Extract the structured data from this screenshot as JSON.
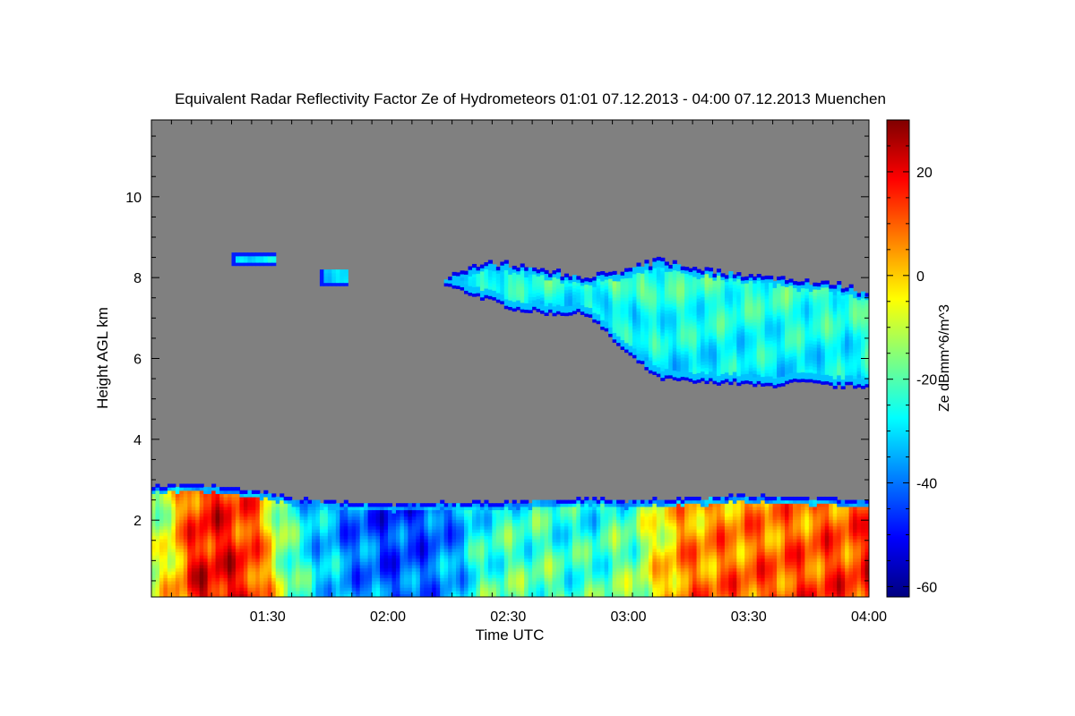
{
  "chart_data": {
    "type": "heatmap",
    "title": "Equivalent Radar Reflectivity Factor Ze of Hydrometeors   01:01 07.12.2013 - 04:00 07.12.2013 Muenchen",
    "xlabel": "Time UTC",
    "ylabel": "Height AGL km",
    "x_range_utc": [
      "01:01",
      "04:00"
    ],
    "x_ticks": [
      "01:30",
      "02:00",
      "02:30",
      "03:00",
      "03:30",
      "04:00"
    ],
    "y_range_km": [
      0.1,
      11.9
    ],
    "y_ticks": [
      2,
      4,
      6,
      8,
      10
    ],
    "colorbar": {
      "label": "Ze dBmm^6/m^3",
      "range": [
        -62,
        30
      ],
      "ticks": [
        -60,
        -40,
        -20,
        0,
        20
      ],
      "colormap": "jet",
      "stops": [
        "#00007f",
        "#0000ff",
        "#007fff",
        "#00ffff",
        "#7fff7f",
        "#ffff00",
        "#ff7f00",
        "#ff0000",
        "#7f0000"
      ]
    },
    "no_data_color": "#808080",
    "features": [
      {
        "name": "low cloud layer",
        "start": "01:01",
        "end": "04:00",
        "base_km": 0.1,
        "top_km": [
          2.8,
          2.85,
          2.7,
          2.5,
          2.4,
          2.35,
          2.4,
          2.4,
          2.45,
          2.5,
          2.45,
          2.5,
          2.55,
          2.55,
          2.5,
          2.45
        ],
        "core_dbz": [
          -12,
          22,
          18,
          -22,
          -35,
          -42,
          -38,
          -20,
          -18,
          -22,
          -15,
          8,
          10,
          12,
          14,
          16
        ]
      },
      {
        "name": "upper cloud layer",
        "start": "02:14",
        "end": "04:00",
        "top_km": [
          8.0,
          8.3,
          8.3,
          8.1,
          8.0,
          8.1,
          8.4,
          8.2,
          8.1,
          8.0,
          7.9,
          7.8,
          7.6
        ],
        "base_km": [
          7.8,
          7.5,
          7.2,
          7.1,
          7.1,
          6.2,
          5.5,
          5.4,
          5.4,
          5.3,
          5.4,
          5.3,
          5.3
        ],
        "core_dbz": -20
      },
      {
        "name": "cloud fragment",
        "start": "01:21",
        "end": "01:32",
        "bottom_km": 8.3,
        "top_km": 8.55
      },
      {
        "name": "cloud fragment",
        "start": "01:43",
        "end": "01:50",
        "bottom_km": 7.8,
        "top_km": 8.2
      }
    ]
  }
}
